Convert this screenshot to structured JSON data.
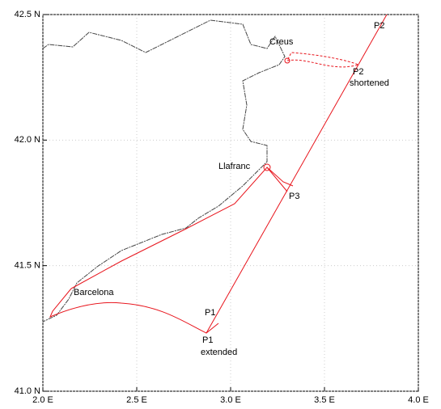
{
  "chart_data": {
    "type": "map",
    "xlim": [
      2.0,
      4.0
    ],
    "ylim": [
      41.0,
      42.5
    ],
    "xticks": [
      {
        "value": 2.0,
        "label": "2.0 E"
      },
      {
        "value": 2.5,
        "label": "2.5 E"
      },
      {
        "value": 3.0,
        "label": "3.0 E"
      },
      {
        "value": 3.5,
        "label": "3.5 E"
      },
      {
        "value": 4.0,
        "label": "4.0 E"
      }
    ],
    "yticks": [
      {
        "value": 41.0,
        "label": "41.0 N"
      },
      {
        "value": 41.5,
        "label": "41.5 N"
      },
      {
        "value": 42.0,
        "label": "42.0 N"
      },
      {
        "value": 42.5,
        "label": "42.5 N"
      }
    ],
    "grid": true,
    "track_color": "#e8141c",
    "coast_color": "#444444",
    "annotations": [
      "Creus",
      "P2",
      "P2",
      "shortened",
      "Llafranc",
      "P3",
      "Barcelona",
      "P1",
      "P1",
      "extended"
    ]
  }
}
